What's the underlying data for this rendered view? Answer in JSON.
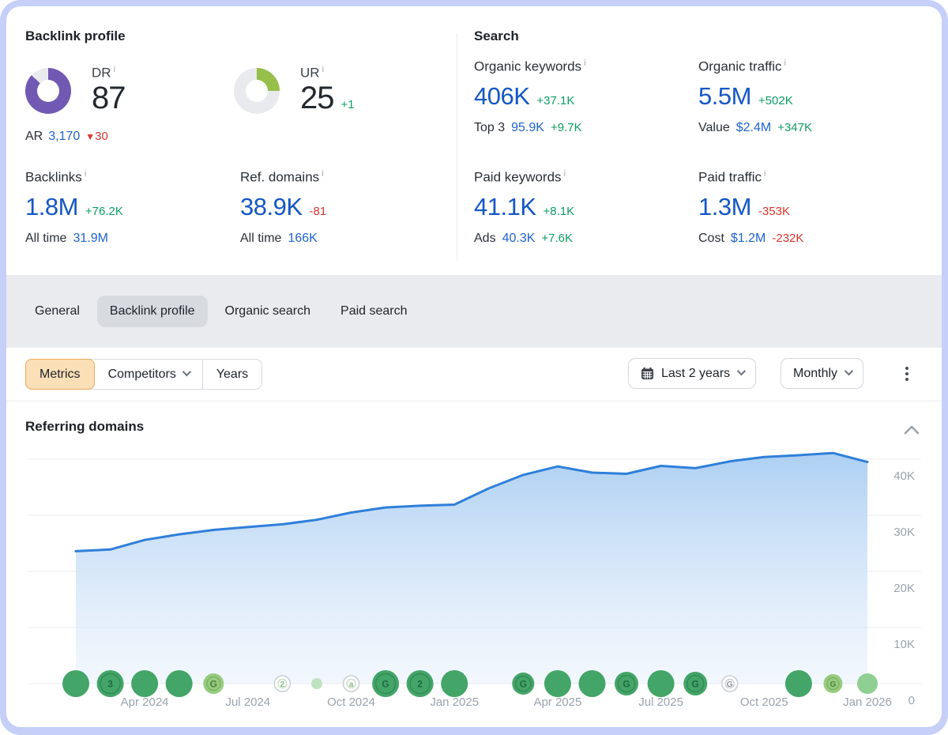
{
  "backlink_profile": {
    "title": "Backlink profile",
    "dr": {
      "label": "DR",
      "value": "87",
      "pct": 87,
      "ar_label": "AR",
      "ar_value": "3,170",
      "ar_delta": "30"
    },
    "ur": {
      "label": "UR",
      "value": "25",
      "pct": 25,
      "delta": "+1"
    },
    "backlinks": {
      "label": "Backlinks",
      "value": "1.8M",
      "delta": "+76.2K",
      "sub_label": "All time",
      "sub_value": "31.9M"
    },
    "ref_domains": {
      "label": "Ref. domains",
      "value": "38.9K",
      "delta": "-81",
      "sub_label": "All time",
      "sub_value": "166K"
    }
  },
  "search": {
    "title": "Search",
    "organic_keywords": {
      "label": "Organic keywords",
      "value": "406K",
      "delta": "+37.1K",
      "sub_label": "Top 3",
      "sub_value": "95.9K",
      "sub_delta": "+9.7K"
    },
    "organic_traffic": {
      "label": "Organic traffic",
      "value": "5.5M",
      "delta": "+502K",
      "sub_label": "Value",
      "sub_value": "$2.4M",
      "sub_delta": "+347K"
    },
    "paid_keywords": {
      "label": "Paid keywords",
      "value": "41.1K",
      "delta": "+8.1K",
      "sub_label": "Ads",
      "sub_value": "40.3K",
      "sub_delta": "+7.6K"
    },
    "paid_traffic": {
      "label": "Paid traffic",
      "value": "1.3M",
      "delta": "-353K",
      "sub_label": "Cost",
      "sub_value": "$1.2M",
      "sub_delta": "-232K"
    }
  },
  "tabs": [
    {
      "label": "General",
      "active": false
    },
    {
      "label": "Backlink profile",
      "active": true
    },
    {
      "label": "Organic search",
      "active": false
    },
    {
      "label": "Paid search",
      "active": false
    }
  ],
  "controls": {
    "metrics": "Metrics",
    "competitors": "Competitors",
    "years": "Years",
    "period": "Last 2 years",
    "granularity": "Monthly"
  },
  "panel": {
    "title": "Referring domains"
  },
  "colors": {
    "dr_purple": "#7159b3",
    "ur_green": "#96bf4b",
    "donut_track": "#e9eaee",
    "line_blue": "#2f7fd9",
    "value_blue": "#1457c5",
    "delta_green": "#0e9d62",
    "delta_red": "#d9342c",
    "marker_green": "#43a567",
    "marker_light_green": "#8fcf92",
    "axis_gray": "#9aa3ad"
  },
  "chart_data": {
    "type": "area",
    "title": "Referring domains",
    "x": [
      "Feb 2024",
      "Mar 2024",
      "Apr 2024",
      "May 2024",
      "Jun 2024",
      "Jul 2024",
      "Aug 2024",
      "Sep 2024",
      "Oct 2024",
      "Nov 2024",
      "Dec 2024",
      "Jan 2025",
      "Feb 2025",
      "Mar 2025",
      "Apr 2025",
      "May 2025",
      "Jun 2025",
      "Jul 2025",
      "Aug 2025",
      "Sep 2025",
      "Oct 2025",
      "Nov 2025",
      "Dec 2025",
      "Jan 2026"
    ],
    "values": [
      23600,
      23900,
      25600,
      26600,
      27400,
      27900,
      28400,
      29200,
      30500,
      31400,
      31700,
      31900,
      34800,
      37200,
      38700,
      37600,
      37400,
      38800,
      38400,
      39600,
      40400,
      40700,
      41100,
      39500
    ],
    "ylabel": "",
    "xlabel": "",
    "ylim": [
      0,
      45000
    ],
    "grid": true,
    "legend": "none",
    "y_ticks": [
      {
        "v": 40,
        "label": "40K"
      },
      {
        "v": 30,
        "label": "30K"
      },
      {
        "v": 20,
        "label": "20K"
      },
      {
        "v": 10,
        "label": "10K"
      },
      {
        "v": 0,
        "label": "0"
      }
    ],
    "x_ticks": [
      {
        "m": 2,
        "label": "Apr 2024"
      },
      {
        "m": 5,
        "label": "Jul 2024"
      },
      {
        "m": 8,
        "label": "Oct 2024"
      },
      {
        "m": 11,
        "label": "Jan 2025"
      },
      {
        "m": 14,
        "label": "Apr 2025"
      },
      {
        "m": 17,
        "label": "Jul 2025"
      },
      {
        "m": 20,
        "label": "Oct 2025"
      },
      {
        "m": 23,
        "label": "Jan 2026"
      }
    ],
    "markers": [
      {
        "m": 0,
        "r": 17,
        "style": "solid",
        "glyph": ""
      },
      {
        "m": 1,
        "r": 17,
        "style": "ring",
        "glyph": "3"
      },
      {
        "m": 2,
        "r": 17,
        "style": "solid",
        "glyph": ""
      },
      {
        "m": 3,
        "r": 17,
        "style": "solid",
        "glyph": ""
      },
      {
        "m": 4,
        "r": 13,
        "style": "lightring",
        "glyph": "G"
      },
      {
        "m": 6,
        "r": 10,
        "style": "outlinelight",
        "glyph": "2"
      },
      {
        "m": 7,
        "r": 7,
        "style": "pale",
        "glyph": ""
      },
      {
        "m": 8,
        "r": 10,
        "style": "outlinelight",
        "glyph": "a"
      },
      {
        "m": 9,
        "r": 17,
        "style": "ring",
        "glyph": "G"
      },
      {
        "m": 10,
        "r": 17,
        "style": "ring",
        "glyph": "2"
      },
      {
        "m": 11,
        "r": 17,
        "style": "solid",
        "glyph": ""
      },
      {
        "m": 13,
        "r": 14,
        "style": "ring",
        "glyph": "G"
      },
      {
        "m": 14,
        "r": 17,
        "style": "solid",
        "glyph": ""
      },
      {
        "m": 15,
        "r": 17,
        "style": "solid",
        "glyph": ""
      },
      {
        "m": 16,
        "r": 15,
        "style": "ring",
        "glyph": "G"
      },
      {
        "m": 17,
        "r": 17,
        "style": "solid",
        "glyph": ""
      },
      {
        "m": 18,
        "r": 15,
        "style": "ring",
        "glyph": "G"
      },
      {
        "m": 19,
        "r": 10,
        "style": "outline",
        "glyph": "G"
      },
      {
        "m": 21,
        "r": 17,
        "style": "solid",
        "glyph": ""
      },
      {
        "m": 22,
        "r": 12,
        "style": "lightring",
        "glyph": "G"
      },
      {
        "m": 23,
        "r": 13,
        "style": "light",
        "glyph": ""
      }
    ]
  }
}
